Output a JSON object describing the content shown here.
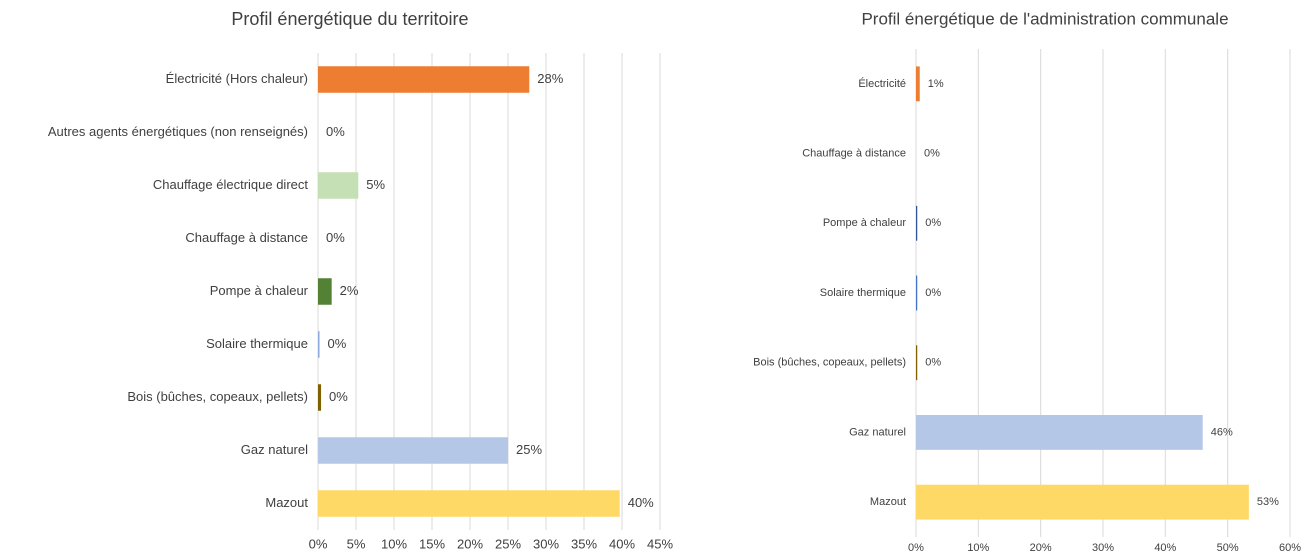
{
  "chart_data": [
    {
      "type": "bar",
      "orientation": "horizontal",
      "title": "Profil énergétique du territoire",
      "categories": [
        "Électricité (Hors chaleur)",
        "Autres agents énergétiques (non renseignés)",
        "Chauffage électrique direct",
        "Chauffage à distance",
        "Pompe à chaleur",
        "Solaire thermique",
        "Bois (bûches, copeaux, pellets)",
        "Gaz naturel",
        "Mazout"
      ],
      "values": [
        27.8,
        0,
        5.3,
        0,
        1.8,
        0.2,
        0.4,
        25,
        39.7
      ],
      "value_labels": [
        "28%",
        "0%",
        "5%",
        "0%",
        "2%",
        "0%",
        "0%",
        "25%",
        "40%"
      ],
      "colors": [
        "#ed7d31",
        "#ffffff",
        "#c5e0b4",
        "#ffffff",
        "#548235",
        "#8faadc",
        "#806000",
        "#b4c7e7",
        "#ffd966"
      ],
      "xlim": [
        0,
        45
      ],
      "xticks": [
        {
          "value": 0,
          "label": "0%"
        },
        {
          "value": 5,
          "label": "5%"
        },
        {
          "value": 10,
          "label": "10%"
        },
        {
          "value": 15,
          "label": "15%"
        },
        {
          "value": 20,
          "label": "20%"
        },
        {
          "value": 25,
          "label": "25%"
        },
        {
          "value": 30,
          "label": "30%"
        },
        {
          "value": 35,
          "label": "35%"
        },
        {
          "value": 40,
          "label": "40%"
        },
        {
          "value": 45,
          "label": "45%"
        }
      ],
      "grid": true
    },
    {
      "type": "bar",
      "orientation": "horizontal",
      "title": "Profil énergétique de l'administration communale",
      "categories": [
        "Électricité",
        "Chauffage à distance",
        "Pompe à chaleur",
        "Solaire thermique",
        "Bois (bûches, copeaux, pellets)",
        "Gaz naturel",
        "Mazout"
      ],
      "values": [
        0.6,
        0,
        0.2,
        0.2,
        0.2,
        46,
        53.4
      ],
      "value_labels": [
        "1%",
        "0%",
        "0%",
        "0%",
        "0%",
        "46%",
        "53%"
      ],
      "colors": [
        "#ed7d31",
        "#ffffff",
        "#2f5597",
        "#4472c4",
        "#806000",
        "#b4c7e7",
        "#ffd966"
      ],
      "xlim": [
        0,
        60
      ],
      "xticks": [
        {
          "value": 0,
          "label": "0%"
        },
        {
          "value": 10,
          "label": "10%"
        },
        {
          "value": 20,
          "label": "20%"
        },
        {
          "value": 30,
          "label": "30%"
        },
        {
          "value": 40,
          "label": "40%"
        },
        {
          "value": 50,
          "label": "50%"
        },
        {
          "value": 60,
          "label": "60%"
        }
      ],
      "grid": true
    }
  ]
}
